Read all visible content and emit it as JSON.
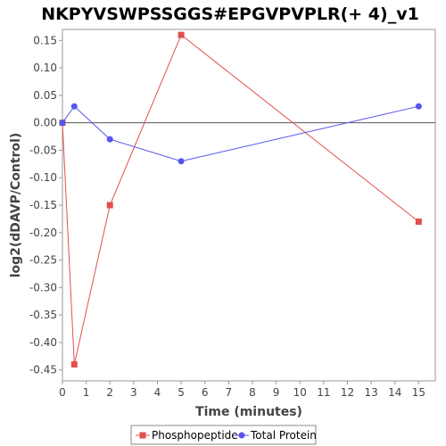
{
  "chart_data": {
    "type": "line",
    "title": "NKPYVSWPSSGGS#EPGVPVPLR(+ 4)_v1",
    "xlabel": "Time (minutes)",
    "ylabel": "log2(dDAVP/Control)",
    "xlim": [
      0,
      15.7
    ],
    "ylim": [
      -0.47,
      0.17
    ],
    "xticks": [
      0,
      1,
      2,
      3,
      4,
      5,
      6,
      7,
      8,
      9,
      10,
      11,
      12,
      13,
      14,
      15
    ],
    "yticks": [
      0.15,
      0.1,
      0.05,
      0.0,
      -0.05,
      -0.1,
      -0.15,
      -0.2,
      -0.25,
      -0.3,
      -0.35,
      -0.4,
      -0.45
    ],
    "ytick_labels": [
      "0.15",
      "0.10",
      "0.05",
      "0.00",
      "-0.05",
      "-0.10",
      "-0.15",
      "-0.20",
      "-0.25",
      "-0.30",
      "-0.35",
      "-0.40",
      "-0.45"
    ],
    "zero_line": true,
    "grid": false,
    "legend_position": "bottom",
    "series": [
      {
        "name": "Phosphopeptide",
        "color": "#e05050",
        "marker": "square",
        "x": [
          0,
          0.5,
          2,
          5,
          15
        ],
        "y": [
          0.0,
          -0.44,
          -0.15,
          0.16,
          -0.18
        ]
      },
      {
        "name": "Total Protein",
        "color": "#5555ee",
        "marker": "circle",
        "x": [
          0,
          0.5,
          2,
          5,
          15
        ],
        "y": [
          0.0,
          0.03,
          -0.03,
          -0.07,
          0.03
        ]
      }
    ]
  }
}
